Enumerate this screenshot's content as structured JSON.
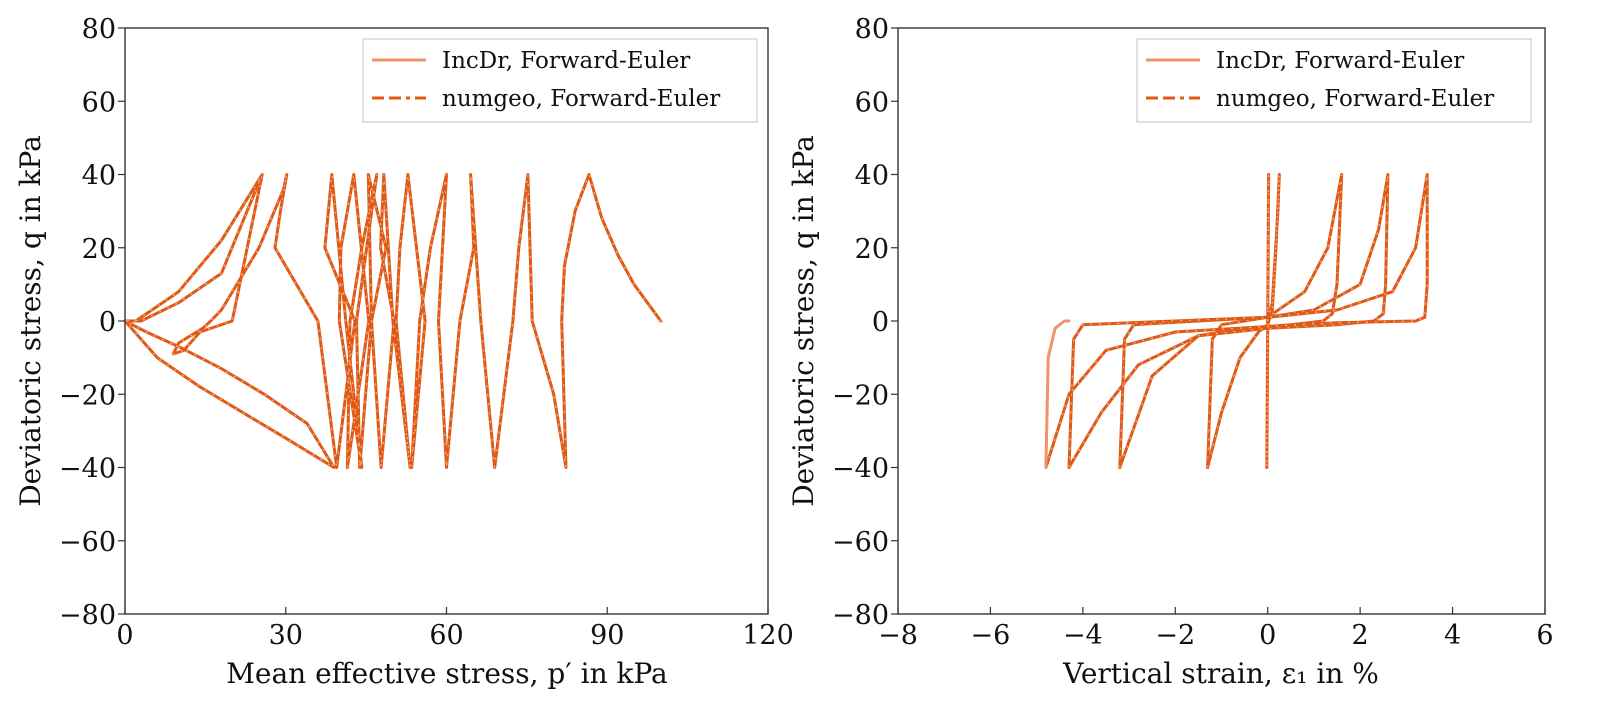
{
  "figure": {
    "colors": {
      "incdr": "#f0936a",
      "numgeo": "#e05a17",
      "numgeo_dash_gap": "#f6b995",
      "axis": "#333333",
      "legend_border": "#cccccc"
    }
  },
  "chart_data": [
    {
      "id": "stress-path",
      "type": "line",
      "title": "",
      "xlabel": "Mean effective stress, p′ in kPa",
      "ylabel": "Deviatoric stress, q in kPa",
      "xlim": [
        0,
        120
      ],
      "ylim": [
        -80,
        80
      ],
      "xticks": [
        0,
        30,
        60,
        90,
        120
      ],
      "xtick_labels": [
        "0",
        "30",
        "60",
        "90",
        "120"
      ],
      "yticks": [
        -80,
        -60,
        -40,
        -20,
        0,
        20,
        40,
        60,
        80
      ],
      "ytick_labels": [
        "−80",
        "−60",
        "−40",
        "−20",
        "0",
        "20",
        "40",
        "60",
        "80"
      ],
      "grid": false,
      "legend": {
        "placement": "top-right",
        "entries": [
          {
            "label": "IncDr, Forward-Euler",
            "style": "solid"
          },
          {
            "label": "numgeo, Forward-Euler",
            "style": "dashed"
          }
        ]
      },
      "series": [
        {
          "name": "IncDr, Forward-Euler",
          "x": [
            100,
            99,
            97.5,
            95,
            92,
            89,
            86.6,
            84,
            82,
            81.5,
            82.3,
            80,
            76,
            75.2,
            73.5,
            72.4,
            69,
            66.4,
            64.5,
            65.1,
            62.5,
            60,
            58.5,
            60,
            57,
            55,
            53.5,
            56,
            52.8,
            51.3,
            50.6,
            53.2,
            50,
            48.3,
            47.7,
            50.2,
            47.8,
            46,
            45.4,
            48.7,
            46,
            43.8,
            43.2,
            47,
            44.2,
            42,
            41.5,
            45.5,
            42.7,
            40.3,
            40,
            44.2,
            41.2,
            38.6,
            37.3,
            42.9,
            39.5,
            36,
            28,
            29,
            30.2,
            29.6,
            25,
            18,
            16,
            14.5,
            10,
            9,
            11,
            14,
            20,
            25.6,
            18,
            10,
            4,
            2,
            0,
            4,
            10,
            18,
            26,
            34,
            39,
            30,
            22,
            14,
            6,
            0,
            3,
            10,
            18,
            25.6
          ],
          "y": [
            0,
            2,
            5,
            10,
            18,
            28,
            40,
            30,
            15,
            0,
            -40,
            -20,
            0,
            40,
            20,
            0,
            -40,
            0,
            40,
            20,
            0,
            -40,
            0,
            40,
            20,
            0,
            -40,
            0,
            40,
            20,
            0,
            -40,
            0,
            40,
            20,
            0,
            -40,
            0,
            40,
            20,
            0,
            -40,
            0,
            40,
            20,
            0,
            -40,
            0,
            40,
            20,
            0,
            -40,
            0,
            40,
            20,
            0,
            -40,
            0,
            20,
            30,
            40,
            36,
            20,
            3,
            0,
            -2,
            -6,
            -9,
            -8,
            -3,
            0,
            40,
            22,
            8,
            2,
            0,
            0,
            -3,
            -7,
            -13,
            -20,
            -28,
            -40,
            -32,
            -25,
            -18,
            -10,
            0,
            0,
            5,
            13,
            40
          ]
        },
        {
          "name": "numgeo, Forward-Euler",
          "same_as": "IncDr, Forward-Euler"
        }
      ],
      "peak_p_at_q_plus_40": [
        25.6,
        30.2,
        38.6,
        40.3,
        42.0,
        43.8,
        46.0,
        48.3,
        51.3,
        55.0,
        60.0,
        66.4,
        75.2,
        86.6
      ],
      "trough_p_at_q_minus_40": [
        39.0,
        42.9,
        44.2,
        45.5,
        47.0,
        48.7,
        50.2,
        53.2,
        56.0,
        60.0,
        65.1,
        72.4,
        82.3
      ]
    },
    {
      "id": "stress-strain",
      "type": "line",
      "title": "",
      "xlabel": "Vertical strain, ε₁ in %",
      "ylabel": "Deviatoric stress, q in kPa",
      "xlim": [
        -8,
        6
      ],
      "ylim": [
        -80,
        80
      ],
      "xticks": [
        -8,
        -6,
        -4,
        -2,
        0,
        2,
        4,
        6
      ],
      "xtick_labels": [
        "−8",
        "−6",
        "−4",
        "−2",
        "0",
        "2",
        "4",
        "6"
      ],
      "yticks": [
        -80,
        -60,
        -40,
        -20,
        0,
        20,
        40,
        60,
        80
      ],
      "ytick_labels": [
        "−80",
        "−60",
        "−40",
        "−20",
        "0",
        "20",
        "40",
        "60",
        "80"
      ],
      "grid": false,
      "legend": {
        "placement": "top-right",
        "entries": [
          {
            "label": "IncDr, Forward-Euler",
            "style": "solid"
          },
          {
            "label": "numgeo, Forward-Euler",
            "style": "dashed"
          }
        ]
      },
      "series": [
        {
          "name": "IncDr, Forward-Euler",
          "branches": [
            {
              "x": [
                0,
                0.01,
                0.02,
                0.01,
                0,
                -0.01,
                -0.02,
                0
              ],
              "y": [
                0,
                20,
                40,
                20,
                0,
                -20,
                -40,
                0
              ]
            },
            {
              "x": [
                0,
                0.1,
                0.22,
                0.25,
                0.18,
                0.1,
                0,
                -0.2,
                -0.6,
                -1.0,
                -1.3
              ],
              "y": [
                0,
                5,
                30,
                40,
                20,
                3,
                -1,
                -3,
                -10,
                -25,
                -40
              ]
            },
            {
              "x": [
                -1.3,
                -1.2,
                -1.0,
                0,
                0.8,
                1.3,
                1.6,
                1.5,
                1.4,
                1.2,
                0.5,
                -0.5,
                -1.5,
                -2.5,
                -3.2
              ],
              "y": [
                -40,
                -5,
                -1,
                1,
                8,
                20,
                40,
                10,
                2,
                0,
                -1,
                -2,
                -4,
                -15,
                -40
              ]
            },
            {
              "x": [
                -3.2,
                -3.1,
                -2.9,
                -1.5,
                0,
                1.0,
                2.0,
                2.4,
                2.6,
                2.55,
                2.5,
                2.3,
                1.5,
                0,
                -1.5,
                -2.8,
                -3.6,
                -4.3
              ],
              "y": [
                -40,
                -5,
                -1,
                0,
                1,
                3,
                10,
                25,
                40,
                10,
                2,
                0,
                -1,
                -2,
                -4,
                -12,
                -25,
                -40
              ]
            },
            {
              "x": [
                -4.3,
                -4.2,
                -4.0,
                -2.0,
                0,
                1.5,
                2.7,
                3.2,
                3.45,
                3.45,
                3.4,
                3.2,
                1.5,
                0,
                -2.0,
                -3.5,
                -4.3,
                -4.8
              ],
              "y": [
                -40,
                -5,
                -1,
                0,
                1,
                3,
                8,
                20,
                40,
                10,
                1,
                0,
                -0.5,
                -1.5,
                -3,
                -8,
                -20,
                -40
              ]
            },
            {
              "x": [
                -4.8,
                -4.75,
                -4.6,
                -4.4,
                -4.3
              ],
              "y": [
                -40,
                -10,
                -2,
                0,
                0
              ],
              "note": "IncDr-only end segment (light)"
            }
          ]
        },
        {
          "name": "numgeo, Forward-Euler",
          "same_as": "IncDr, Forward-Euler",
          "note": "overlaps IncDr except final light segment near ε₁ ≈ −4.8 to −4.3"
        }
      ]
    }
  ]
}
